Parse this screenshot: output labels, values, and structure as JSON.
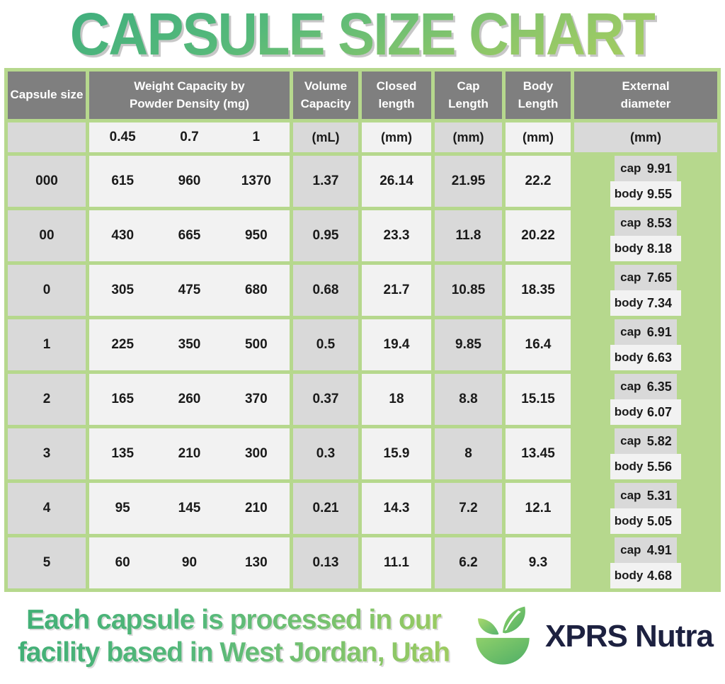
{
  "title": "CAPSULE SIZE CHART",
  "table": {
    "headers": {
      "capsule_size": "Capsule size",
      "weight": "Weight Capacity by\nPowder Density (mg)",
      "volume": "Volume\nCapacity",
      "closed": "Closed\nlength",
      "cap": "Cap\nLength",
      "body": "Body\nLength",
      "external": "External\ndiameter"
    },
    "units": {
      "densities": [
        "0.45",
        "0.7",
        "1"
      ],
      "volume": "(mL)",
      "closed": "(mm)",
      "cap": "(mm)",
      "body": "(mm)",
      "external": "(mm)"
    },
    "diameter_labels": {
      "cap": "cap",
      "body": "body"
    },
    "rows": [
      {
        "size": "000",
        "weights": [
          "615",
          "960",
          "1370"
        ],
        "volume": "1.37",
        "closed": "26.14",
        "cap_length": "21.95",
        "body_length": "22.2",
        "cap_diameter": "9.91",
        "body_diameter": "9.55"
      },
      {
        "size": "00",
        "weights": [
          "430",
          "665",
          "950"
        ],
        "volume": "0.95",
        "closed": "23.3",
        "cap_length": "11.8",
        "body_length": "20.22",
        "cap_diameter": "8.53",
        "body_diameter": "8.18"
      },
      {
        "size": "0",
        "weights": [
          "305",
          "475",
          "680"
        ],
        "volume": "0.68",
        "closed": "21.7",
        "cap_length": "10.85",
        "body_length": "18.35",
        "cap_diameter": "7.65",
        "body_diameter": "7.34"
      },
      {
        "size": "1",
        "weights": [
          "225",
          "350",
          "500"
        ],
        "volume": "0.5",
        "closed": "19.4",
        "cap_length": "9.85",
        "body_length": "16.4",
        "cap_diameter": "6.91",
        "body_diameter": "6.63"
      },
      {
        "size": "2",
        "weights": [
          "165",
          "260",
          "370"
        ],
        "volume": "0.37",
        "closed": "18",
        "cap_length": "8.8",
        "body_length": "15.15",
        "cap_diameter": "6.35",
        "body_diameter": "6.07"
      },
      {
        "size": "3",
        "weights": [
          "135",
          "210",
          "300"
        ],
        "volume": "0.3",
        "closed": "15.9",
        "cap_length": "8",
        "body_length": "13.45",
        "cap_diameter": "5.82",
        "body_diameter": "5.56"
      },
      {
        "size": "4",
        "weights": [
          "95",
          "145",
          "210"
        ],
        "volume": "0.21",
        "closed": "14.3",
        "cap_length": "7.2",
        "body_length": "12.1",
        "cap_diameter": "5.31",
        "body_diameter": "5.05"
      },
      {
        "size": "5",
        "weights": [
          "60",
          "90",
          "130"
        ],
        "volume": "0.13",
        "closed": "11.1",
        "cap_length": "6.2",
        "body_length": "9.3",
        "cap_diameter": "4.91",
        "body_diameter": "4.68"
      }
    ]
  },
  "footer": {
    "line1": "Each capsule is processed in our",
    "line2": "facility based in West Jordan, Utah",
    "brand": "XPRS Nutra",
    "logo_icon": "mortar-bowl-with-leaves-icon"
  },
  "colors": {
    "border_green": "#b6d88d",
    "header_gray": "#7f7f7f",
    "cell_gray": "#d9d9d9",
    "cell_white": "#f2f2f2",
    "title_gradient_start": "#3fae7e",
    "title_gradient_end": "#a9ce5f",
    "brand_navy": "#1d2140"
  },
  "chart_data": {
    "type": "table",
    "title": "CAPSULE SIZE CHART",
    "columns": [
      "Capsule size",
      "Weight Capacity 0.45 density (mg)",
      "Weight Capacity 0.7 density (mg)",
      "Weight Capacity 1 density (mg)",
      "Volume Capacity (mL)",
      "Closed length (mm)",
      "Cap Length (mm)",
      "Body Length (mm)",
      "External diameter cap (mm)",
      "External diameter body (mm)"
    ],
    "rows": [
      [
        "000",
        615,
        960,
        1370,
        1.37,
        26.14,
        21.95,
        22.2,
        9.91,
        9.55
      ],
      [
        "00",
        430,
        665,
        950,
        0.95,
        23.3,
        11.8,
        20.22,
        8.53,
        8.18
      ],
      [
        "0",
        305,
        475,
        680,
        0.68,
        21.7,
        10.85,
        18.35,
        7.65,
        7.34
      ],
      [
        "1",
        225,
        350,
        500,
        0.5,
        19.4,
        9.85,
        16.4,
        6.91,
        6.63
      ],
      [
        "2",
        165,
        260,
        370,
        0.37,
        18,
        8.8,
        15.15,
        6.35,
        6.07
      ],
      [
        "3",
        135,
        210,
        300,
        0.3,
        15.9,
        8,
        13.45,
        5.82,
        5.56
      ],
      [
        "4",
        95,
        145,
        210,
        0.21,
        14.3,
        7.2,
        12.1,
        5.31,
        5.05
      ],
      [
        "5",
        60,
        90,
        130,
        0.13,
        11.1,
        6.2,
        9.3,
        4.91,
        4.68
      ]
    ]
  }
}
